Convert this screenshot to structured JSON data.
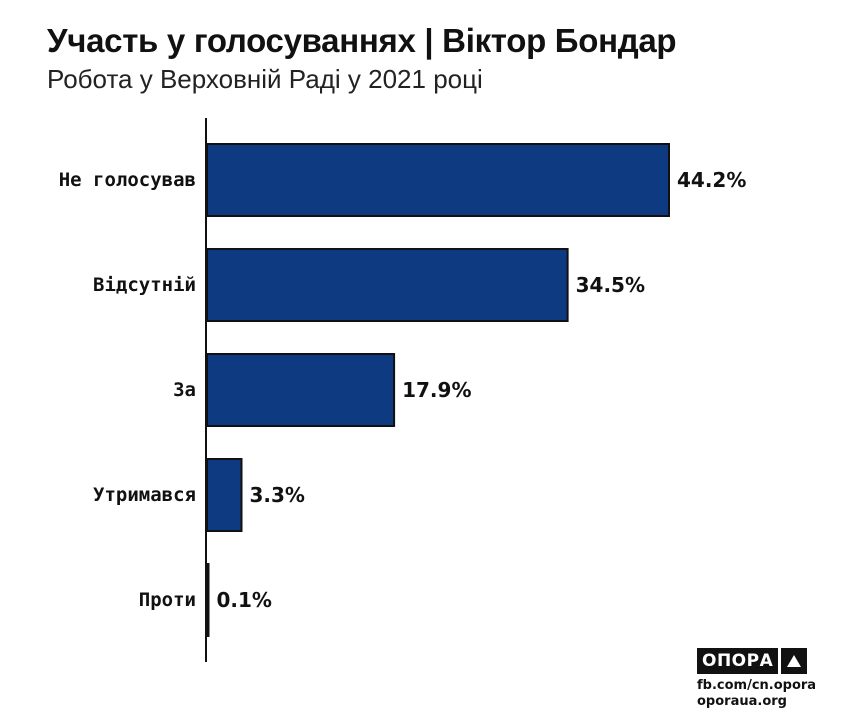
{
  "header": {
    "title": "Участь у голосуваннях | Віктор Бондар",
    "subtitle": "Робота у Верховній Раді у 2021 році"
  },
  "chart_data": {
    "type": "bar",
    "orientation": "horizontal",
    "categories": [
      "Не голосував",
      "Відсутній",
      "За",
      "Утримався",
      "Проти"
    ],
    "values": [
      44.2,
      34.5,
      17.9,
      3.3,
      0.1
    ],
    "value_labels": [
      "44.2%",
      "34.5%",
      "17.9%",
      "3.3%",
      "0.1%"
    ],
    "xlim": [
      0,
      44.2
    ],
    "grid": false,
    "legend": "none",
    "bar_color": "#0d3a80",
    "bar_outline": "#111111"
  },
  "footer": {
    "logo_text": "ОПОРА",
    "logo_icon": "triangle-icon",
    "links": [
      "fb.com/cn.opora",
      "oporaua.org"
    ]
  }
}
